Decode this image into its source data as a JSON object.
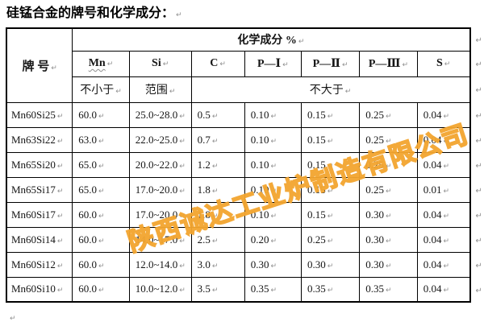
{
  "page": {
    "title": "硅锰合金的牌号和化学成分："
  },
  "marks": {
    "cell_end": "↵",
    "row_end": "↵",
    "para_end": "↵"
  },
  "watermark": {
    "text": "陕西诚达工业炉制造有限公司",
    "color": "#f2a42e"
  },
  "table": {
    "corner_header": "牌 号",
    "group_header": "化学成分 %",
    "columns": [
      "Mn",
      "Si",
      "C",
      "P—Ⅰ",
      "P—Ⅱ",
      "P—Ⅲ",
      "S"
    ],
    "condition_row": {
      "under_mn": "不小于",
      "under_si": "范围",
      "under_rest": "不大于"
    },
    "rows": [
      {
        "grade": "Mn60Si25",
        "cells": [
          "60.0",
          "25.0~28.0",
          "0.5",
          "0.10",
          "0.15",
          "0.25",
          "0.04"
        ]
      },
      {
        "grade": "Mn63Si22",
        "cells": [
          "63.0",
          "22.0~25.0",
          "0.7",
          "0.10",
          "0.15",
          "0.25",
          "0.04"
        ]
      },
      {
        "grade": "Mn65Si20",
        "cells": [
          "65.0",
          "20.0~22.0",
          "1.2",
          "0.10",
          "0.15",
          "0.25",
          "0.04"
        ]
      },
      {
        "grade": "Mn65Si17",
        "cells": [
          "65.0",
          "17.0~20.0",
          "1.8",
          "0.10",
          "0.15",
          "0.25",
          "0.01"
        ]
      },
      {
        "grade": "Mn60Si17",
        "cells": [
          "60.0",
          "17.0~20.0",
          "1.8",
          "0.10",
          "0.15",
          "0.30",
          "0.04"
        ]
      },
      {
        "grade": "Mn60Si14",
        "cells": [
          "60.0",
          "14.0~17.0",
          "2.5",
          "0.20",
          "0.25",
          "0.30",
          "0.04"
        ]
      },
      {
        "grade": "Mn60Si12",
        "cells": [
          "60.0",
          "12.0~14.0",
          "3.0",
          "0.30",
          "0.30",
          "0.30",
          "0.04"
        ]
      },
      {
        "grade": "Mn60Si10",
        "cells": [
          "60.0",
          "10.0~12.0",
          "3.5",
          "0.35",
          "0.35",
          "0.35",
          "0.04"
        ]
      }
    ]
  }
}
